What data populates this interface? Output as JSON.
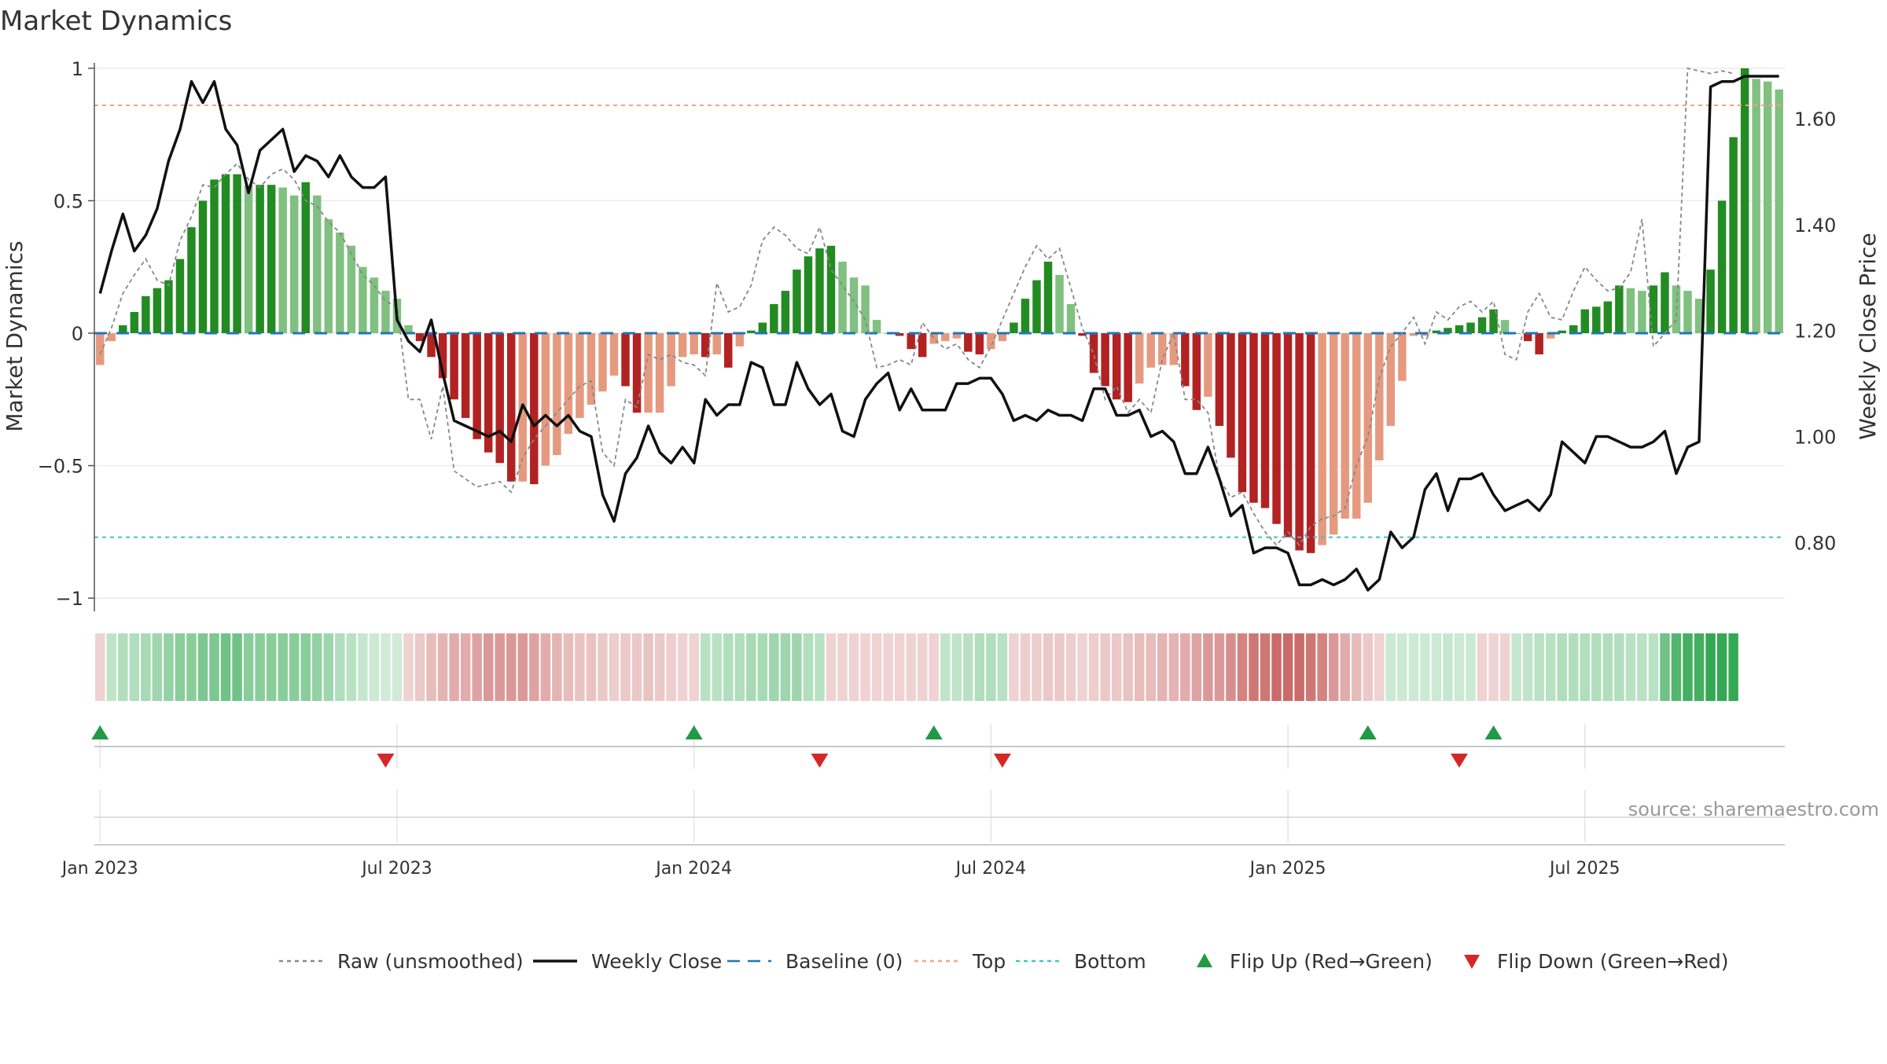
{
  "title": "Market Dynamics",
  "source": "source: sharemaestro.com",
  "colors": {
    "strong_green": "#228b22",
    "light_green": "#80c080",
    "strong_red": "#b22222",
    "light_red": "#e59a80",
    "raw": "#888888",
    "close": "#111111",
    "baseline": "#1f77b4",
    "top": "#f4a582",
    "bottom": "#40c4c8",
    "flip_up": "#229944",
    "flip_down": "#d62728"
  },
  "legend": [
    {
      "key": "raw",
      "label": "Raw (unsmoothed)",
      "style": "dotted-line"
    },
    {
      "key": "close",
      "label": "Weekly Close",
      "style": "solid-line"
    },
    {
      "key": "baseline",
      "label": "Baseline (0)",
      "style": "dashed-line"
    },
    {
      "key": "top",
      "label": "Top",
      "style": "dotted-line"
    },
    {
      "key": "bottom",
      "label": "Bottom",
      "style": "dotted-line"
    },
    {
      "key": "flip_up",
      "label": "Flip Up (Red→Green)",
      "style": "up-triangle"
    },
    {
      "key": "flip_down",
      "label": "Flip Down (Green→Red)",
      "style": "down-triangle"
    }
  ],
  "chart_data": {
    "type": "bar",
    "title": "Market Dynamics",
    "ylabel": "Market Dynamics",
    "y2label": "Weekly Close Price",
    "ylim": [
      -1.05,
      1.05
    ],
    "y2lim": [
      0.67,
      1.72
    ],
    "yticks": [
      {
        "value": 1,
        "label": "1"
      },
      {
        "value": 0.5,
        "label": "0.5"
      },
      {
        "value": 0,
        "label": "0"
      },
      {
        "value": -0.5,
        "label": "−0.5"
      },
      {
        "value": -1,
        "label": "−1"
      }
    ],
    "y2ticks": [
      {
        "value": 1.6,
        "label": "1.60"
      },
      {
        "value": 1.4,
        "label": "1.40"
      },
      {
        "value": 1.2,
        "label": "1.20"
      },
      {
        "value": 1.0,
        "label": "1.00"
      },
      {
        "value": 0.8,
        "label": "0.80"
      }
    ],
    "xticks": [
      {
        "week": 1,
        "label": "Jan 2023"
      },
      {
        "week": 27,
        "label": "Jul 2023"
      },
      {
        "week": 53,
        "label": "Jan 2024"
      },
      {
        "week": 79,
        "label": "Jul 2024"
      },
      {
        "week": 105,
        "label": "Jan 2025"
      },
      {
        "week": 131,
        "label": "Jul 2025"
      }
    ],
    "first_week": "2022-12-19",
    "top_level": 0.86,
    "bottom_level": -0.77,
    "flip_up_weeks": [
      1,
      53,
      74,
      112,
      123
    ],
    "flip_down_weeks": [
      26,
      64,
      80,
      120
    ],
    "dynamics": [
      -0.12,
      -0.03,
      0.03,
      0.08,
      0.14,
      0.17,
      0.2,
      0.28,
      0.4,
      0.5,
      0.58,
      0.6,
      0.6,
      0.56,
      0.56,
      0.56,
      0.55,
      0.52,
      0.57,
      0.52,
      0.43,
      0.38,
      0.33,
      0.25,
      0.21,
      0.16,
      0.13,
      0.03,
      -0.03,
      -0.09,
      -0.17,
      -0.25,
      -0.32,
      -0.4,
      -0.45,
      -0.49,
      -0.56,
      -0.56,
      -0.57,
      -0.5,
      -0.46,
      -0.38,
      -0.32,
      -0.27,
      -0.22,
      -0.16,
      -0.2,
      -0.3,
      -0.3,
      -0.3,
      -0.2,
      -0.09,
      -0.08,
      -0.09,
      -0.08,
      -0.13,
      -0.05,
      0.01,
      0.04,
      0.11,
      0.16,
      0.24,
      0.29,
      0.32,
      0.33,
      0.27,
      0.21,
      0.18,
      0.05,
      0.0,
      -0.01,
      -0.06,
      -0.09,
      -0.04,
      -0.03,
      -0.02,
      -0.07,
      -0.08,
      -0.06,
      -0.03,
      0.04,
      0.13,
      0.2,
      0.27,
      0.22,
      0.11,
      -0.01,
      -0.15,
      -0.2,
      -0.25,
      -0.26,
      -0.19,
      -0.13,
      -0.12,
      -0.12,
      -0.2,
      -0.29,
      -0.24,
      -0.35,
      -0.47,
      -0.6,
      -0.64,
      -0.66,
      -0.72,
      -0.77,
      -0.82,
      -0.83,
      -0.8,
      -0.76,
      -0.7,
      -0.7,
      -0.64,
      -0.48,
      -0.35,
      -0.18,
      -0.01,
      -0.01,
      0.01,
      0.02,
      0.03,
      0.04,
      0.06,
      0.09,
      0.05,
      0.0,
      -0.03,
      -0.08,
      -0.02,
      0.01,
      0.03,
      0.09,
      0.1,
      0.12,
      0.18,
      0.17,
      0.16,
      0.18,
      0.23,
      0.18,
      0.16,
      0.13,
      0.24,
      0.5,
      0.74,
      1.0,
      0.96,
      0.95,
      0.92
    ],
    "raw": [
      -0.08,
      0.02,
      0.15,
      0.22,
      0.28,
      0.2,
      0.18,
      0.35,
      0.44,
      0.56,
      0.55,
      0.6,
      0.64,
      0.58,
      0.55,
      0.6,
      0.62,
      0.58,
      0.5,
      0.48,
      0.42,
      0.38,
      0.3,
      0.22,
      0.18,
      0.12,
      0.1,
      -0.25,
      -0.25,
      -0.4,
      -0.2,
      -0.52,
      -0.55,
      -0.58,
      -0.57,
      -0.56,
      -0.6,
      -0.47,
      -0.4,
      -0.35,
      -0.3,
      -0.25,
      -0.2,
      -0.18,
      -0.45,
      -0.5,
      -0.25,
      -0.28,
      -0.08,
      -0.1,
      -0.08,
      -0.11,
      -0.12,
      -0.16,
      0.19,
      0.08,
      0.1,
      0.18,
      0.35,
      0.4,
      0.37,
      0.32,
      0.3,
      0.4,
      0.24,
      0.18,
      0.12,
      0.05,
      -0.13,
      -0.12,
      -0.1,
      -0.12,
      0.04,
      -0.02,
      -0.06,
      -0.04,
      -0.1,
      -0.13,
      -0.05,
      0.05,
      0.15,
      0.25,
      0.33,
      0.28,
      0.32,
      0.17,
      0.02,
      -0.08,
      -0.25,
      -0.2,
      -0.3,
      -0.25,
      -0.3,
      -0.1,
      0.0,
      -0.25,
      -0.25,
      -0.3,
      -0.55,
      -0.62,
      -0.6,
      -0.68,
      -0.75,
      -0.8,
      -0.75,
      -0.8,
      -0.73,
      -0.7,
      -0.69,
      -0.66,
      -0.5,
      -0.39,
      -0.17,
      -0.05,
      0.0,
      0.06,
      -0.04,
      0.08,
      0.05,
      0.1,
      0.12,
      0.08,
      0.12,
      -0.08,
      -0.1,
      0.08,
      0.15,
      0.06,
      0.05,
      0.16,
      0.25,
      0.2,
      0.16,
      0.17,
      0.23,
      0.43,
      -0.05,
      0.0,
      0.05,
      1.0,
      0.99,
      0.98,
      0.99,
      0.98
    ],
    "close": [
      1.27,
      1.35,
      1.42,
      1.35,
      1.38,
      1.43,
      1.52,
      1.58,
      1.67,
      1.63,
      1.67,
      1.58,
      1.55,
      1.46,
      1.54,
      1.56,
      1.58,
      1.5,
      1.53,
      1.52,
      1.49,
      1.53,
      1.49,
      1.47,
      1.47,
      1.49,
      1.22,
      1.18,
      1.16,
      1.22,
      1.12,
      1.03,
      1.02,
      1.01,
      1.0,
      1.01,
      0.99,
      1.06,
      1.02,
      1.04,
      1.02,
      1.04,
      1.01,
      1.0,
      0.89,
      0.84,
      0.93,
      0.96,
      1.02,
      0.97,
      0.95,
      0.98,
      0.95,
      1.07,
      1.04,
      1.06,
      1.06,
      1.14,
      1.13,
      1.06,
      1.06,
      1.14,
      1.09,
      1.06,
      1.08,
      1.01,
      1.0,
      1.07,
      1.1,
      1.12,
      1.05,
      1.09,
      1.05,
      1.05,
      1.05,
      1.1,
      1.1,
      1.11,
      1.11,
      1.08,
      1.03,
      1.04,
      1.03,
      1.05,
      1.04,
      1.04,
      1.03,
      1.09,
      1.09,
      1.04,
      1.04,
      1.05,
      1.0,
      1.01,
      0.99,
      0.93,
      0.93,
      0.98,
      0.92,
      0.85,
      0.87,
      0.78,
      0.79,
      0.79,
      0.78,
      0.72,
      0.72,
      0.73,
      0.72,
      0.73,
      0.75,
      0.71,
      0.73,
      0.82,
      0.79,
      0.81,
      0.9,
      0.93,
      0.86,
      0.92,
      0.92,
      0.93,
      0.89,
      0.86,
      0.87,
      0.88,
      0.86,
      0.89,
      0.99,
      0.97,
      0.95,
      1.0,
      1.0,
      0.99,
      0.98,
      0.98,
      0.99,
      1.01,
      0.93,
      0.98,
      0.99,
      1.66,
      1.67,
      1.67,
      1.68,
      1.68,
      1.68,
      1.68
    ],
    "regime": [
      -0.3,
      0.4,
      0.5,
      0.5,
      0.55,
      0.6,
      0.65,
      0.7,
      0.7,
      0.75,
      0.75,
      0.8,
      0.8,
      0.7,
      0.7,
      0.7,
      0.7,
      0.7,
      0.7,
      0.65,
      0.6,
      0.5,
      0.45,
      0.35,
      0.3,
      0.25,
      0.25,
      -0.3,
      -0.4,
      -0.5,
      -0.55,
      -0.6,
      -0.6,
      -0.65,
      -0.7,
      -0.7,
      -0.7,
      -0.7,
      -0.65,
      -0.6,
      -0.55,
      -0.5,
      -0.45,
      -0.45,
      -0.4,
      -0.35,
      -0.4,
      -0.4,
      -0.45,
      -0.4,
      -0.35,
      -0.3,
      -0.3,
      0.45,
      0.45,
      0.5,
      0.5,
      0.55,
      0.55,
      0.6,
      0.6,
      0.6,
      0.5,
      0.45,
      -0.3,
      -0.3,
      -0.3,
      -0.3,
      -0.3,
      -0.3,
      -0.3,
      -0.3,
      -0.3,
      -0.3,
      0.4,
      0.4,
      0.45,
      0.5,
      0.5,
      0.45,
      -0.3,
      -0.35,
      -0.35,
      -0.4,
      -0.4,
      -0.35,
      -0.3,
      -0.35,
      -0.4,
      -0.4,
      -0.45,
      -0.5,
      -0.5,
      -0.55,
      -0.55,
      -0.6,
      -0.65,
      -0.7,
      -0.7,
      -0.75,
      -0.8,
      -0.85,
      -0.85,
      -0.9,
      -0.9,
      -0.9,
      -0.85,
      -0.8,
      -0.7,
      -0.6,
      -0.5,
      -0.4,
      -0.3,
      0.3,
      0.3,
      0.3,
      0.3,
      0.3,
      0.35,
      0.3,
      0.3,
      -0.3,
      -0.3,
      -0.3,
      0.35,
      0.4,
      0.45,
      0.45,
      0.5,
      0.5,
      0.5,
      0.5,
      0.5,
      0.5,
      0.45,
      0.45,
      0.45,
      0.8,
      0.9,
      0.95,
      0.95,
      1.0,
      1.0,
      1.0
    ],
    "series": [
      {
        "name": "Raw (unsmoothed)"
      },
      {
        "name": "Weekly Close"
      },
      {
        "name": "Baseline (0)"
      },
      {
        "name": "Top"
      },
      {
        "name": "Bottom"
      },
      {
        "name": "Flip Up (Red→Green)"
      },
      {
        "name": "Flip Down (Green→Red)"
      }
    ]
  }
}
